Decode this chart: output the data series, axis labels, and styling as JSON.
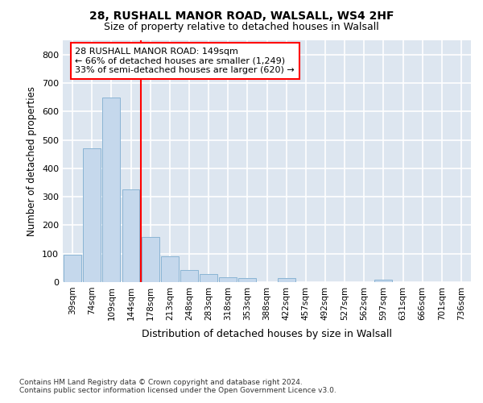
{
  "title1": "28, RUSHALL MANOR ROAD, WALSALL, WS4 2HF",
  "title2": "Size of property relative to detached houses in Walsall",
  "xlabel": "Distribution of detached houses by size in Walsall",
  "ylabel": "Number of detached properties",
  "bar_color": "#c5d8ec",
  "bar_edge_color": "#8ab4d4",
  "vline_color": "red",
  "annotation_text": "28 RUSHALL MANOR ROAD: 149sqm\n← 66% of detached houses are smaller (1,249)\n33% of semi-detached houses are larger (620) →",
  "annotation_box_color": "white",
  "annotation_box_edge": "red",
  "categories": [
    "39sqm",
    "74sqm",
    "109sqm",
    "144sqm",
    "178sqm",
    "213sqm",
    "248sqm",
    "283sqm",
    "318sqm",
    "353sqm",
    "388sqm",
    "422sqm",
    "457sqm",
    "492sqm",
    "527sqm",
    "562sqm",
    "597sqm",
    "631sqm",
    "666sqm",
    "701sqm",
    "736sqm"
  ],
  "values": [
    95,
    470,
    648,
    325,
    158,
    92,
    42,
    28,
    18,
    15,
    0,
    15,
    0,
    0,
    0,
    0,
    8,
    0,
    0,
    0,
    0
  ],
  "ylim": [
    0,
    850
  ],
  "yticks": [
    0,
    100,
    200,
    300,
    400,
    500,
    600,
    700,
    800
  ],
  "footer": "Contains HM Land Registry data © Crown copyright and database right 2024.\nContains public sector information licensed under the Open Government Licence v3.0.",
  "fig_bg_color": "#ffffff",
  "plot_bg_color": "#dde6f0",
  "grid_color": "#ffffff",
  "title_fontsize": 10,
  "subtitle_fontsize": 9
}
